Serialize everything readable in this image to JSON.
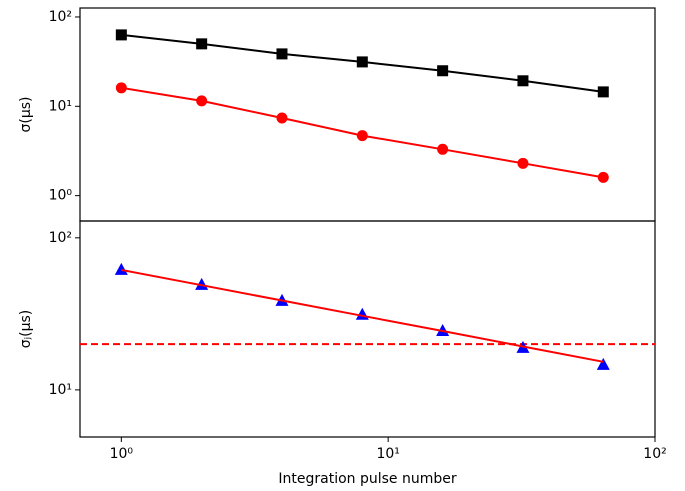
{
  "chart_data": [
    {
      "type": "line",
      "log_x": true,
      "log_y": true,
      "x": [
        1,
        2,
        4,
        8,
        16,
        32,
        64
      ],
      "xlim": [
        0.7,
        100
      ],
      "ylim": [
        0.52,
        126
      ],
      "yticks": [
        {
          "value": 1,
          "label": "10⁰"
        },
        {
          "value": 10,
          "label": "10¹"
        },
        {
          "value": 100,
          "label": "10²"
        }
      ],
      "ylabel": "σ(μs)",
      "series": [
        {
          "color": "#000000",
          "marker": "square",
          "line": true,
          "values": [
            63,
            50,
            38.6,
            31.4,
            25,
            19.3,
            14.5
          ]
        },
        {
          "color": "#ff0000",
          "marker": "circle",
          "line": true,
          "values": [
            16.1,
            11.5,
            7.4,
            4.7,
            3.3,
            2.3,
            1.6
          ]
        }
      ]
    },
    {
      "type": "line",
      "log_x": true,
      "log_y": true,
      "x": [
        1,
        2,
        4,
        8,
        16,
        32,
        64
      ],
      "xlim": [
        0.7,
        100
      ],
      "xticks": [
        {
          "value": 1,
          "label": "10⁰"
        },
        {
          "value": 10,
          "label": "10¹"
        },
        {
          "value": 100,
          "label": "10²"
        }
      ],
      "xlabel": "Integration pulse number",
      "ylim": [
        4.9,
        129
      ],
      "yticks": [
        {
          "value": 10,
          "label": "10¹"
        },
        {
          "value": 100,
          "label": "10²"
        }
      ],
      "ylabel": "σⱼ(μs)",
      "series": [
        {
          "color": "#0000ff",
          "marker": "triangle",
          "line": false,
          "values": [
            61.5,
            49,
            38.5,
            31.2,
            24.4,
            18.9,
            14.6
          ]
        },
        {
          "color": "#ff0000",
          "marker": "none",
          "line": true,
          "values": [
            61.5,
            48.8,
            38.7,
            30.7,
            24.4,
            19.3,
            15.3
          ]
        }
      ],
      "hline": {
        "value": 20,
        "color": "#ff0000",
        "dashed": true
      }
    }
  ]
}
